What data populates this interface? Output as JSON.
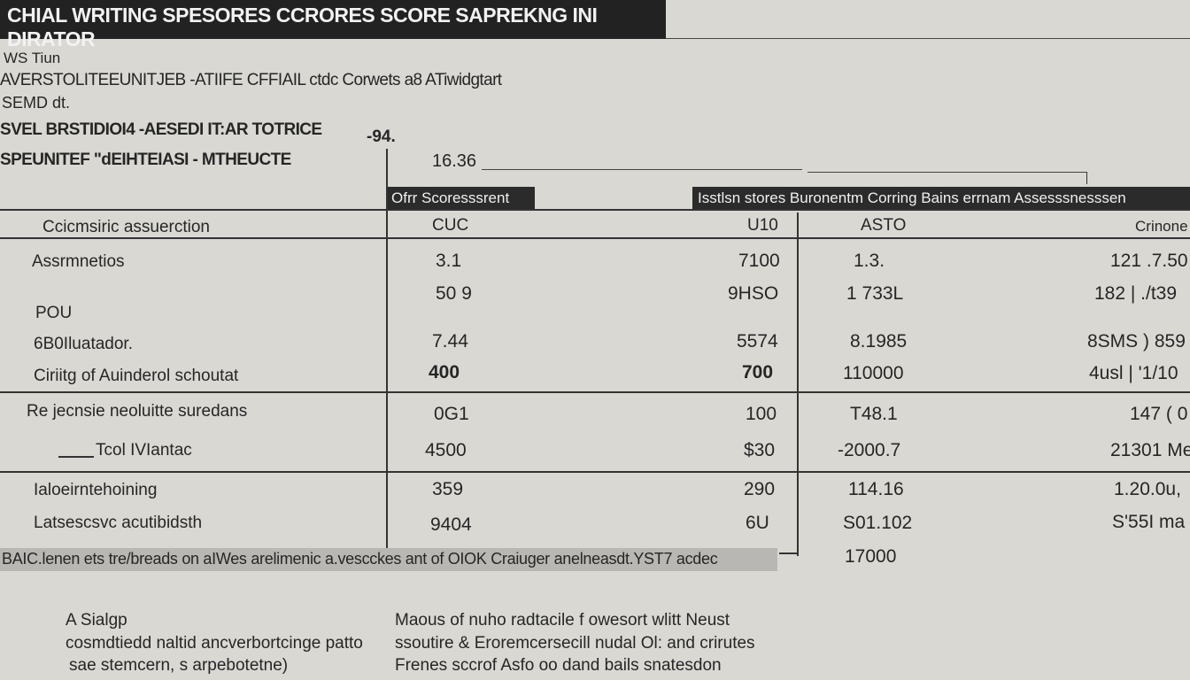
{
  "title": "CHIAL WRITING SPESORES CCRORES SCORE SAPREKNG INI DIRATOR",
  "header": {
    "line1": "WS Tiun",
    "line2": "AVERSTOLITEEUNITJEB  -ATIIFE  CFFIAIL ctdc Corwets a8 ATiwidgtart",
    "line3": "SEMD dt.",
    "line4": "SVEL BRSTIDIOI4  -AESEDI IT:AR TOTRICE",
    "line5": "SPEUNITEF \"dEIHTEIASI  -  MTHEUCTE",
    "mark": "-94.",
    "value": "16.36"
  },
  "tags": {
    "left": "Ofrr Scoresssrent",
    "right": "Isstlsn stores Buronentm Corring Bains errnam Assesssnesssen"
  },
  "table": {
    "columns": [
      "Ccicmsiric assuerction",
      "CUC",
      "U10",
      "ASTO",
      "Crinone"
    ],
    "rows": [
      {
        "label": "Assrmnetios",
        "v": [
          "3.1",
          "7100",
          "1.3.",
          "121  .7.50"
        ]
      },
      {
        "label": "",
        "v": [
          "50 9",
          "9HSO",
          "1 733L",
          "182  |  ./t39"
        ]
      },
      {
        "label": "POU",
        "v": [
          "",
          "",
          "",
          ""
        ]
      },
      {
        "label": "6B0Iluatador.",
        "v": [
          "7.44",
          "5574",
          "8.1985",
          "8SMS )  859"
        ]
      },
      {
        "label": "Ciriitg of Auinderol schoutat",
        "v": [
          "400",
          "700",
          "110000",
          "4usl  |  '1/10"
        ]
      },
      {
        "label": "Re jecnsie neoluitte suredans",
        "v": [
          "0G1",
          "100",
          "T48.1",
          "147  ( 0"
        ]
      },
      {
        "label": "Tcol IVIantac",
        "v": [
          "4500",
          "$30",
          "-2000.7",
          "21301 Me"
        ]
      },
      {
        "label": "Ialoeirntehoining",
        "v": [
          "359",
          "290",
          "114.16",
          "1.20.0u,"
        ]
      },
      {
        "label": "Latsescsvc acutibidsth",
        "v": [
          "9404",
          "6U",
          "S01.102",
          "S'55I ma"
        ]
      }
    ],
    "extra_value": "17000"
  },
  "footer_band": "BAIC.lenen ets tre/breads on aIWes arelimenic a.vescckes ant of OIOK Craiuger anelneasdt.YST7 acdec",
  "notes": {
    "left": [
      "A Sialgp",
      "cosmdtiedd naltid ancverbortcinge patto",
      "sae stemcern, s arpebotetne)"
    ],
    "right": [
      "Maous of nuho radtacile f owesort wlitt Neust",
      "ssoutire & Eroremcersecill nudal Ol: and crirutes",
      "Frenes sccrof Asfo oo dand bails snatesdon"
    ]
  }
}
